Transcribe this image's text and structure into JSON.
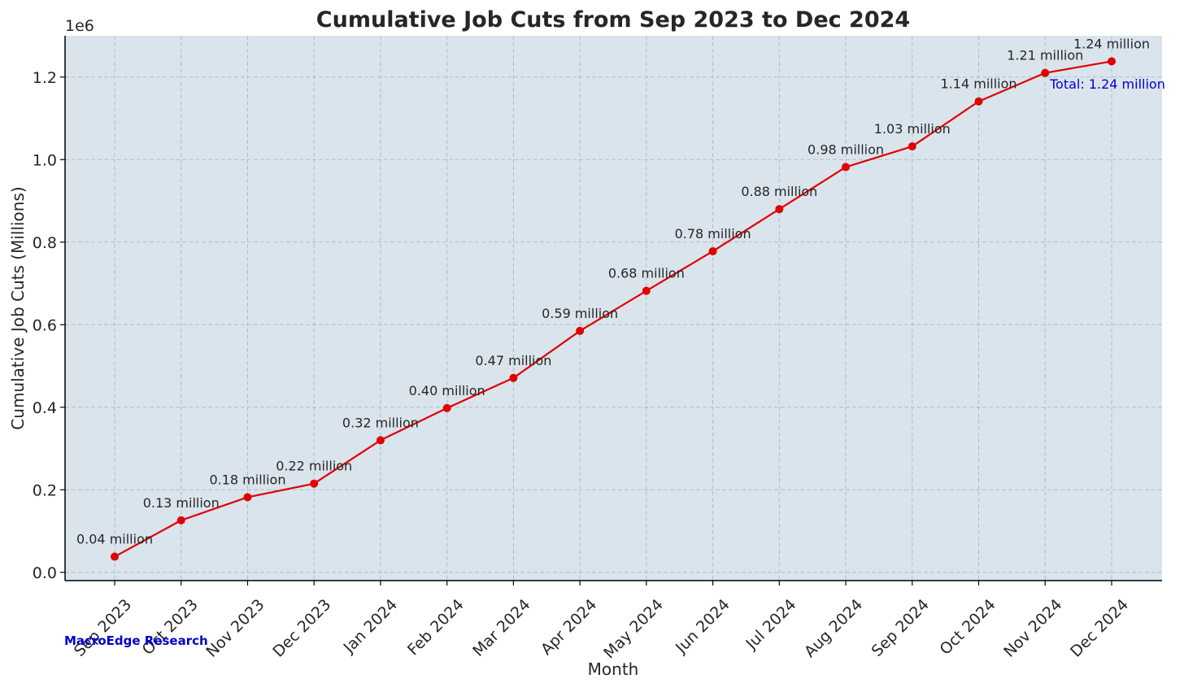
{
  "chart_data": {
    "type": "line",
    "title": "Cumulative Job Cuts from Sep 2023 to Dec 2024",
    "xlabel": "Month",
    "ylabel": "Cumulative Job Cuts (Millions)",
    "y_offset_label": "1e6",
    "ylim": [
      -20000,
      1300000
    ],
    "yticks": [
      0,
      200000,
      400000,
      600000,
      800000,
      1000000,
      1200000
    ],
    "ytick_labels": [
      "0.0",
      "0.2",
      "0.4",
      "0.6",
      "0.8",
      "1.0",
      "1.2"
    ],
    "categories": [
      "Sep 2023",
      "Oct 2023",
      "Nov 2023",
      "Dec 2023",
      "Jan 2024",
      "Feb 2024",
      "Mar 2024",
      "Apr 2024",
      "May 2024",
      "Jun 2024",
      "Jul 2024",
      "Aug 2024",
      "Sep 2024",
      "Oct 2024",
      "Nov 2024",
      "Dec 2024"
    ],
    "series": [
      {
        "values": [
          38000,
          126000,
          182000,
          215000,
          320000,
          398000,
          471000,
          585000,
          682000,
          778000,
          880000,
          982000,
          1032000,
          1141000,
          1210000,
          1238000
        ],
        "data_labels": [
          "0.04 million",
          "0.13 million",
          "0.18 million",
          "0.22 million",
          "0.32 million",
          "0.40 million",
          "0.47 million",
          "0.59 million",
          "0.68 million",
          "0.78 million",
          "0.88 million",
          "0.98 million",
          "1.03 million",
          "1.14 million",
          "1.21 million",
          "1.24 million"
        ],
        "color": "#e00000"
      }
    ],
    "annotation": "Total: 1.24 million",
    "annotation_color": "#0000cd",
    "grid": true,
    "background": "#dae4ed"
  },
  "watermark": "MacroEdge Research"
}
